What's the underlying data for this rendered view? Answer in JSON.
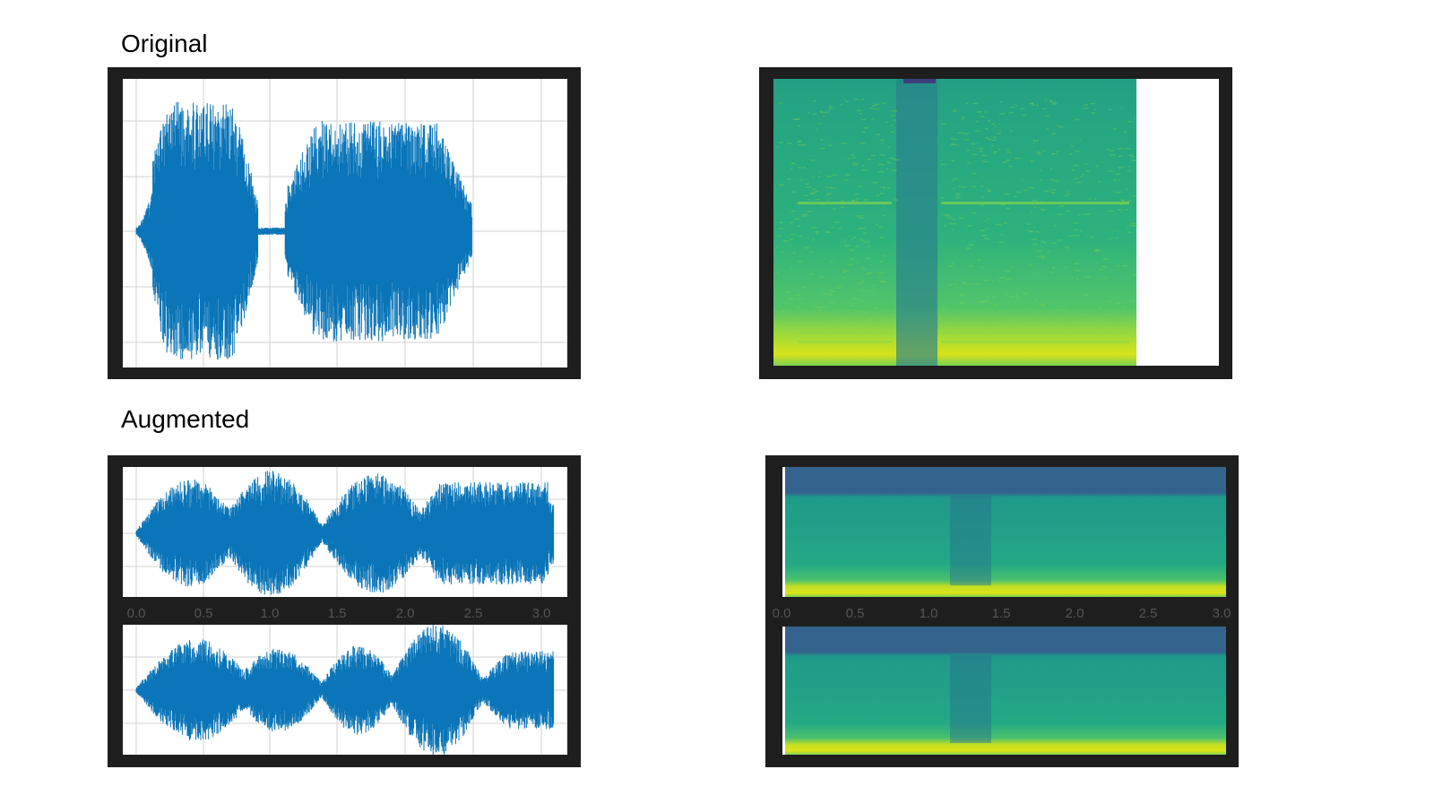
{
  "sections": [
    {
      "label": "Original"
    },
    {
      "label": "Augmented"
    }
  ],
  "waveform_xticks": [
    "0.0",
    "0.5",
    "1.0",
    "1.5",
    "2.0",
    "2.5",
    "3.0"
  ],
  "spectrogram_xticks": [
    "0.0",
    "0.5",
    "1.0",
    "1.5",
    "2.0",
    "2.5",
    "3.0"
  ]
}
